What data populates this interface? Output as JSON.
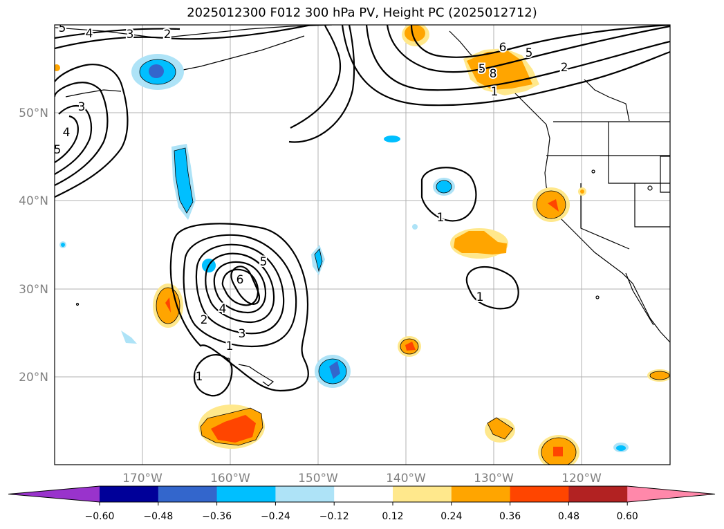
{
  "title": "2025012300 F012 300 hPa PV, Height PC (2025012712)",
  "lon_labels": [
    "170°W",
    "160°W",
    "150°W",
    "140°W",
    "130°W",
    "120°W"
  ],
  "lat_labels": [
    "50°N",
    "40°N",
    "30°N",
    "20°N"
  ],
  "colorbar": {
    "colors": [
      "#9933cc",
      "#000099",
      "#3366cc",
      "#00bfff",
      "#aee3f7",
      "#ffffff",
      "#ffe88c",
      "#ffa500",
      "#ff4500",
      "#b22222",
      "#ff88aa"
    ],
    "ticks": [
      "−0.60",
      "−0.48",
      "−0.36",
      "−0.24",
      "−0.12",
      "0.12",
      "0.24",
      "0.36",
      "0.48",
      "0.60"
    ]
  },
  "contour_labels": [
    "5",
    "4",
    "3",
    "2",
    "5",
    "6",
    "5",
    "2",
    "8",
    "1",
    "3",
    "4",
    "5",
    "1",
    "5",
    "6",
    "4",
    "2",
    "3",
    "1",
    "1",
    "1"
  ]
}
